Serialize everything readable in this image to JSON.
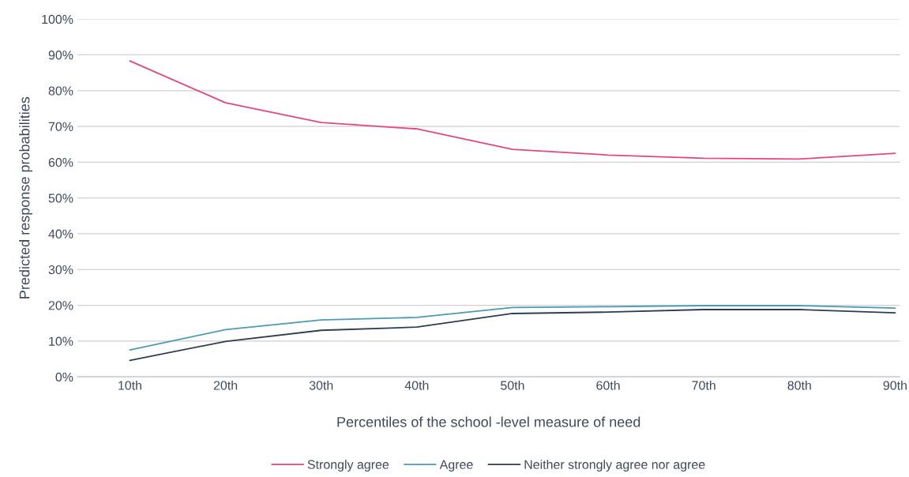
{
  "chart_data": {
    "type": "line",
    "xlabel": "Percentiles of the school -level measure of need",
    "ylabel": "Predicted response probabilities",
    "categories": [
      "10th",
      "20th",
      "30th",
      "40th",
      "50th",
      "60th",
      "70th",
      "80th",
      "90th"
    ],
    "series": [
      {
        "name": "Strongly agree",
        "color": "#e8457a",
        "values": [
          88.3,
          76.6,
          71.1,
          69.3,
          63.6,
          62.0,
          61.1,
          60.9,
          62.5
        ]
      },
      {
        "name": "Agree",
        "color": "#4a9bb5",
        "values": [
          7.5,
          13.2,
          15.9,
          16.6,
          19.4,
          19.6,
          19.9,
          19.9,
          19.2
        ]
      },
      {
        "name": "Neither strongly agree nor agree",
        "color": "#2c3e50",
        "values": [
          4.6,
          9.9,
          13.0,
          13.9,
          17.7,
          18.1,
          18.8,
          18.8,
          17.9
        ]
      }
    ],
    "ylim": [
      0,
      100
    ],
    "yticks": [
      {
        "value": 0,
        "label": "0%"
      },
      {
        "value": 10,
        "label": "10%"
      },
      {
        "value": 20,
        "label": "20%"
      },
      {
        "value": 30,
        "label": "30%"
      },
      {
        "value": 40,
        "label": "40%"
      },
      {
        "value": 50,
        "label": "50%"
      },
      {
        "value": 60,
        "label": "60%"
      },
      {
        "value": 70,
        "label": "70%"
      },
      {
        "value": 80,
        "label": "80%"
      },
      {
        "value": 90,
        "label": "90%"
      },
      {
        "value": 100,
        "label": "100%"
      }
    ],
    "grid": "y",
    "legend": "bottom",
    "marker": "none",
    "line_style": "solid"
  }
}
